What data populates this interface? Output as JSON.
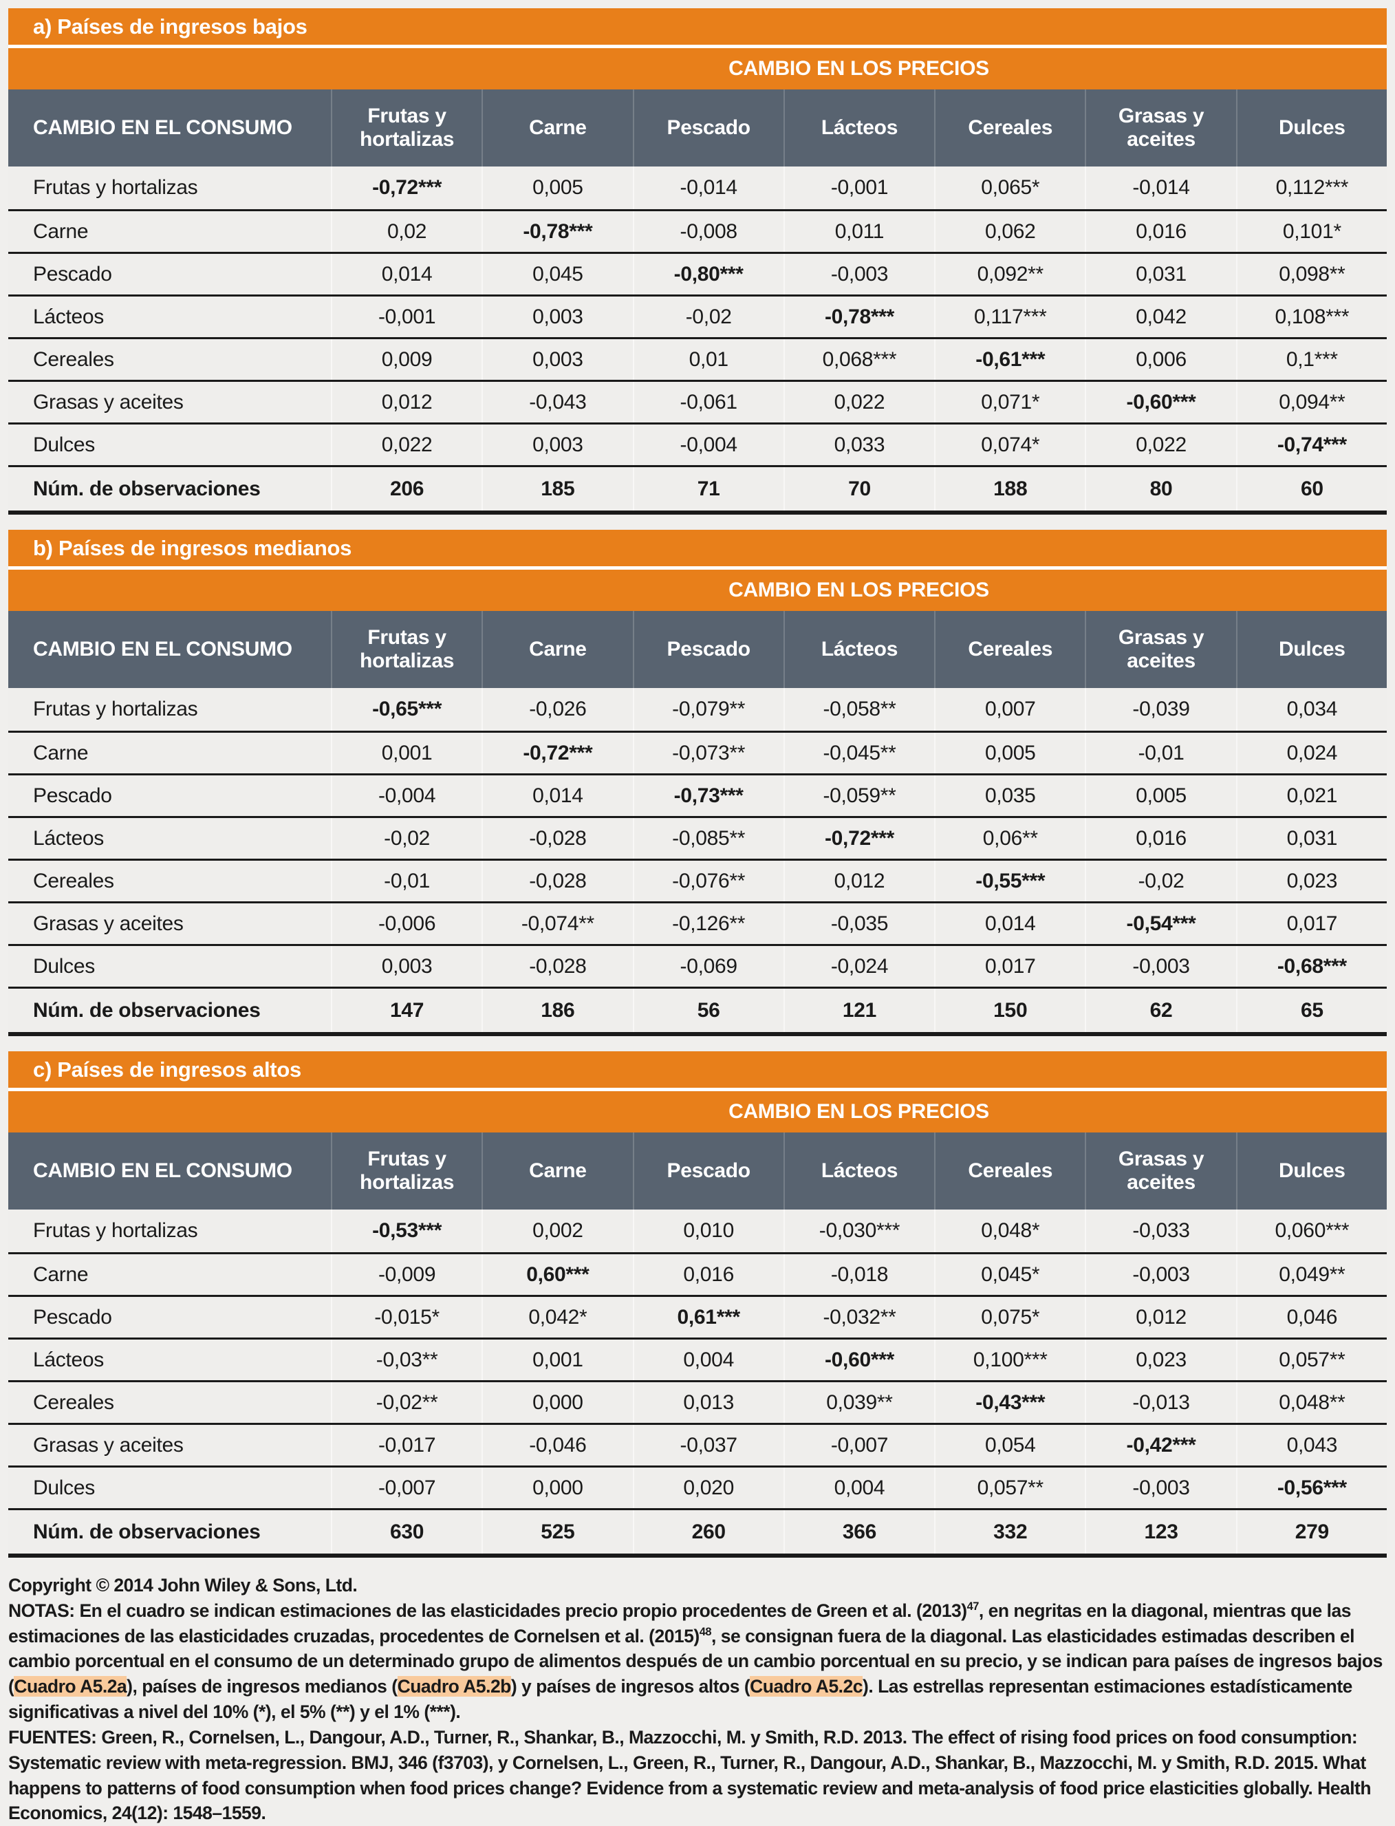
{
  "colors": {
    "orange": "#E87F1A",
    "slate": "#586370",
    "row_bg": "#EFEEEC",
    "page_bg": "#F0EFED",
    "rule": "#1A1A1A",
    "highlight": "#F9CA9C",
    "header_text": "#FFFFFF"
  },
  "price_header": "CAMBIO EN LOS PRECIOS",
  "consumption_header": "CAMBIO EN EL CONSUMO",
  "columns": [
    "Frutas y hortalizas",
    "Carne",
    "Pescado",
    "Lácteos",
    "Cereales",
    "Grasas y aceites",
    "Dulces"
  ],
  "tables": [
    {
      "id": "a",
      "title": "a) Países de ingresos bajos",
      "rows": [
        {
          "label": "Frutas y hortalizas",
          "values": [
            "-0,72***",
            "0,005",
            "-0,014",
            "-0,001",
            "0,065*",
            "-0,014",
            "0,112***"
          ],
          "diag": 0
        },
        {
          "label": "Carne",
          "values": [
            "0,02",
            "-0,78***",
            "-0,008",
            "0,011",
            "0,062",
            "0,016",
            "0,101*"
          ],
          "diag": 1
        },
        {
          "label": "Pescado",
          "values": [
            "0,014",
            "0,045",
            "-0,80***",
            "-0,003",
            "0,092**",
            "0,031",
            "0,098**"
          ],
          "diag": 2
        },
        {
          "label": "Lácteos",
          "values": [
            "-0,001",
            "0,003",
            "-0,02",
            "-0,78***",
            "0,117***",
            "0,042",
            "0,108***"
          ],
          "diag": 3
        },
        {
          "label": "Cereales",
          "values": [
            "0,009",
            "0,003",
            "0,01",
            "0,068***",
            "-0,61***",
            "0,006",
            "0,1***"
          ],
          "diag": 4
        },
        {
          "label": "Grasas y aceites",
          "values": [
            "0,012",
            "-0,043",
            "-0,061",
            "0,022",
            "0,071*",
            "-0,60***",
            "0,094**"
          ],
          "diag": 5
        },
        {
          "label": "Dulces",
          "values": [
            "0,022",
            "0,003",
            "-0,004",
            "0,033",
            "0,074*",
            "0,022",
            "-0,74***"
          ],
          "diag": 6
        },
        {
          "label": "Núm. de observaciones",
          "values": [
            "206",
            "185",
            "71",
            "70",
            "188",
            "80",
            "60"
          ],
          "bold": true
        }
      ]
    },
    {
      "id": "b",
      "title": "b) Países de ingresos medianos",
      "rows": [
        {
          "label": "Frutas y hortalizas",
          "values": [
            "-0,65***",
            "-0,026",
            "-0,079**",
            "-0,058**",
            "0,007",
            "-0,039",
            "0,034"
          ],
          "diag": 0
        },
        {
          "label": "Carne",
          "values": [
            "0,001",
            "-0,72***",
            "-0,073**",
            "-0,045**",
            "0,005",
            "-0,01",
            "0,024"
          ],
          "diag": 1
        },
        {
          "label": "Pescado",
          "values": [
            "-0,004",
            "0,014",
            "-0,73***",
            "-0,059**",
            "0,035",
            "0,005",
            "0,021"
          ],
          "diag": 2
        },
        {
          "label": "Lácteos",
          "values": [
            "-0,02",
            "-0,028",
            "-0,085**",
            "-0,72***",
            "0,06**",
            "0,016",
            "0,031"
          ],
          "diag": 3
        },
        {
          "label": "Cereales",
          "values": [
            "-0,01",
            "-0,028",
            "-0,076**",
            "0,012",
            "-0,55***",
            "-0,02",
            "0,023"
          ],
          "diag": 4
        },
        {
          "label": "Grasas y aceites",
          "values": [
            "-0,006",
            "-0,074**",
            "-0,126**",
            "-0,035",
            "0,014",
            "-0,54***",
            "0,017"
          ],
          "diag": 5
        },
        {
          "label": "Dulces",
          "values": [
            "0,003",
            "-0,028",
            "-0,069",
            "-0,024",
            "0,017",
            "-0,003",
            "-0,68***"
          ],
          "diag": 6
        },
        {
          "label": "Núm. de observaciones",
          "values": [
            "147",
            "186",
            "56",
            "121",
            "150",
            "62",
            "65"
          ],
          "bold": true
        }
      ]
    },
    {
      "id": "c",
      "title": "c) Países de ingresos altos",
      "rows": [
        {
          "label": "Frutas y hortalizas",
          "values": [
            "-0,53***",
            "0,002",
            "0,010",
            "-0,030***",
            "0,048*",
            "-0,033",
            "0,060***"
          ],
          "diag": 0
        },
        {
          "label": "Carne",
          "values": [
            "-0,009",
            "0,60***",
            "0,016",
            "-0,018",
            "0,045*",
            "-0,003",
            "0,049**"
          ],
          "diag": 1
        },
        {
          "label": "Pescado",
          "values": [
            "-0,015*",
            "0,042*",
            "0,61***",
            "-0,032**",
            "0,075*",
            "0,012",
            "0,046"
          ],
          "diag": 2
        },
        {
          "label": "Lácteos",
          "values": [
            "-0,03**",
            "0,001",
            "0,004",
            "-0,60***",
            "0,100***",
            "0,023",
            "0,057**"
          ],
          "diag": 3
        },
        {
          "label": "Cereales",
          "values": [
            "-0,02**",
            "0,000",
            "0,013",
            "0,039**",
            "-0,43***",
            "-0,013",
            "0,048**"
          ],
          "diag": 4
        },
        {
          "label": "Grasas y aceites",
          "values": [
            "-0,017",
            "-0,046",
            "-0,037",
            "-0,007",
            "0,054",
            "-0,42***",
            "0,043"
          ],
          "diag": 5
        },
        {
          "label": "Dulces",
          "values": [
            "-0,007",
            "0,000",
            "0,020",
            "0,004",
            "0,057**",
            "-0,003",
            "-0,56***"
          ],
          "diag": 6
        },
        {
          "label": "Núm. de observaciones",
          "values": [
            "630",
            "525",
            "260",
            "366",
            "332",
            "123",
            "279"
          ],
          "bold": true
        }
      ]
    }
  ],
  "footer": {
    "copyright": "Copyright © 2014 John Wiley & Sons, Ltd.",
    "notes_segments": [
      {
        "t": "NOTAS: En el cuadro se indican estimaciones de las elasticidades precio propio procedentes de Green et al. (2013)"
      },
      {
        "t": "47",
        "sup": true
      },
      {
        "t": ", en negritas en la diagonal, mientras que las estimaciones de las elasticidades cruzadas, procedentes de Cornelsen et al. (2015)"
      },
      {
        "t": "48",
        "sup": true
      },
      {
        "t": ", se consignan fuera de la diagonal. Las elasticidades estimadas describen el cambio porcentual en el consumo de un determinado grupo de alimentos después de un cambio porcentual en su precio, y se indican para países de ingresos bajos ("
      },
      {
        "t": "Cuadro A5.2a",
        "hl": true
      },
      {
        "t": "), países de ingresos medianos ("
      },
      {
        "t": "Cuadro A5.2b",
        "hl": true
      },
      {
        "t": ") y países de ingresos altos ("
      },
      {
        "t": "Cuadro A5.2c",
        "hl": true
      },
      {
        "t": "). Las estrellas representan estimaciones estadísticamente significativas a nivel del 10% (*), el 5% (**) y el 1% (***)."
      }
    ],
    "sources_segments": [
      {
        "t": "FUENTES: Green, R., Cornelsen, L., Dangour, A.D., Turner, R., Shankar, B., Mazzocchi, M. y Smith, R.D. 2013. The effect of rising food prices on food consumption: Systematic review with meta-regression. BMJ, 346 (f3703), y Cornelsen, L., Green, R., Turner, R., Dangour, A.D., Shankar, B., Mazzocchi, M. y Smith, R.D. 2015. What happens to patterns of food consumption when food prices change? Evidence from a systematic review and meta-analysis of food price elasticities globally. Health Economics, 24(12): 1548–1559."
      }
    ]
  }
}
